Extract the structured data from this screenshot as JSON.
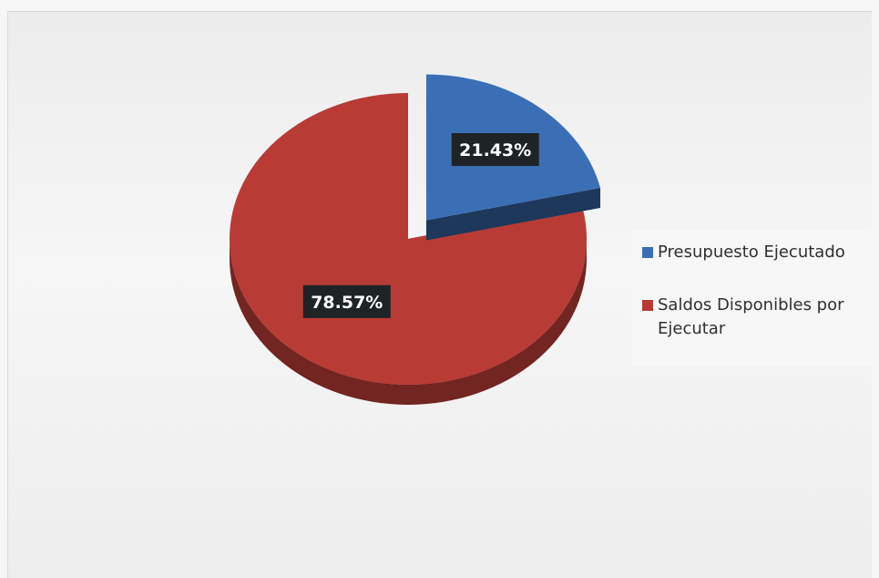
{
  "chart_data": {
    "type": "pie",
    "categories": [
      "Presupuesto Ejecutado",
      "Saldos Disponibles por Ejecutar"
    ],
    "values": [
      21.43,
      78.57
    ],
    "unit": "%",
    "data_labels": [
      "21.43%",
      "78.57%"
    ],
    "colors": [
      "#3a6fb5",
      "#b83b36"
    ],
    "style": "3d-exploded",
    "legend_placement": "right",
    "title": ""
  }
}
